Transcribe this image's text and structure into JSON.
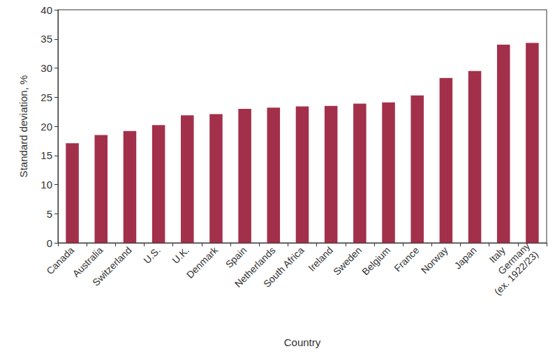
{
  "chart_data": {
    "type": "bar",
    "x_label": "Country",
    "y_label": "Standard deviation, %",
    "categories": [
      "Canada",
      "Australia",
      "Switzerland",
      "U.S.",
      "U.K.",
      "Denmark",
      "Spain",
      "Netherlands",
      "South Africa",
      "Ireland",
      "Sweden",
      "Belgium",
      "France",
      "Norway",
      "Japan",
      "Italy",
      "Germany\n(ex. 1922/23)"
    ],
    "values": [
      17.1,
      18.5,
      19.2,
      20.2,
      21.9,
      22.1,
      23.0,
      23.2,
      23.4,
      23.5,
      23.9,
      24.1,
      25.3,
      28.3,
      29.5,
      34.0,
      34.3
    ],
    "color": "#a3304a",
    "ylim": [
      0,
      40
    ],
    "yticks": [
      0,
      5,
      10,
      15,
      20,
      25,
      30,
      35,
      40
    ],
    "grid": false
  }
}
